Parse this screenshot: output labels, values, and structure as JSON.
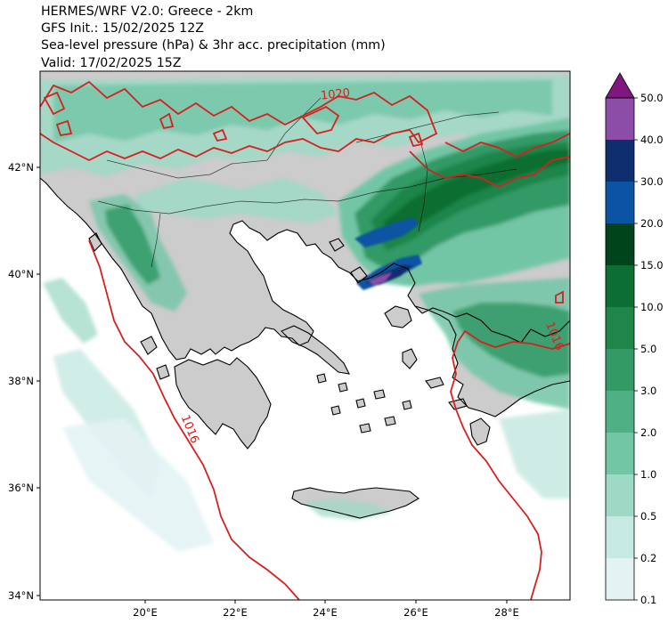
{
  "header": {
    "line1": "HERMES/WRF V2.0: Greece - 2km",
    "line2": "GFS Init.: 15/02/2025 12Z",
    "line3": "Sea-level pressure (hPa) & 3hr acc. precipitation (mm)",
    "line4": "Valid: 17/02/2025 15Z"
  },
  "map": {
    "lon_labels": [
      "20°E",
      "22°E",
      "24°E",
      "26°E",
      "28°E"
    ],
    "lat_labels": [
      "42°N",
      "40°N",
      "38°N",
      "36°N",
      "34°N"
    ],
    "isobar_labels": [
      "1020",
      "1016",
      "1016"
    ],
    "colors": {
      "land": "#cccccc",
      "sea": "#ffffff",
      "isobar": "#d62020",
      "coast": "#000000"
    }
  },
  "colorbar": {
    "levels": [
      "0.1",
      "0.2",
      "0.5",
      "1.0",
      "2.0",
      "3.0",
      "5.0",
      "10.0",
      "15.0",
      "20.0",
      "30.0",
      "40.0",
      "50.0"
    ],
    "colors": [
      "#e3f3f4",
      "#c6e9e1",
      "#9ed9c5",
      "#72c6a6",
      "#4fb086",
      "#339a66",
      "#1f8549",
      "#0c6e33",
      "#00441b",
      "#0b54a3",
      "#0f2e6e",
      "#8c4da8",
      "#80177f",
      "#4d004b"
    ]
  }
}
